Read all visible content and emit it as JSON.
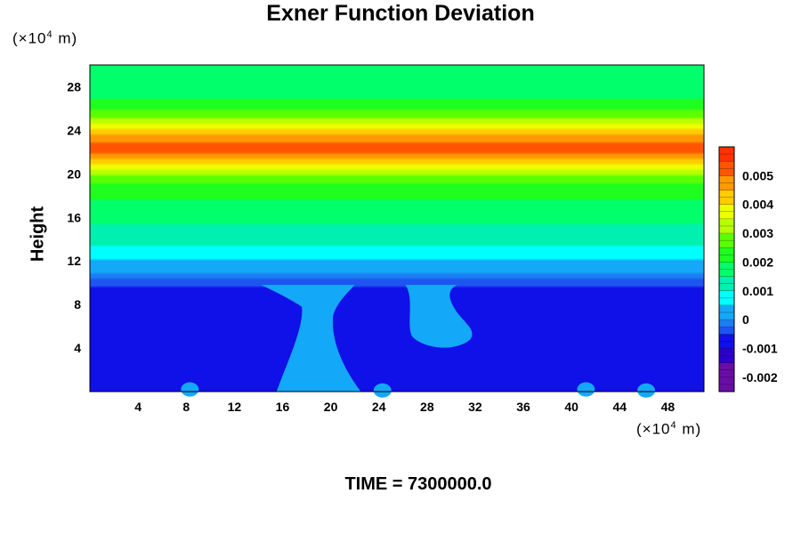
{
  "title": "Exner Function Deviation",
  "y_unit": {
    "prefix": "(×10",
    "exp": "4",
    "suffix": " m)"
  },
  "x_unit": {
    "prefix": "(×10",
    "exp": "4",
    "suffix": " m)"
  },
  "ylabel": "Height",
  "time_label": "TIME = 7300000.0",
  "colors": {
    "c_neg_0020": "#6a0da8",
    "c_neg_0015": "#2d00c8",
    "c_neg_0010": "#1010e8",
    "c_neg_0005": "#1e55f0",
    "c_zero_lo": "#1c7df5",
    "c_zero": "#14a8f8",
    "c_0005": "#00ffff",
    "c_0010": "#00f0b0",
    "c_0015": "#00ff6a",
    "c_0020": "#1fff1f",
    "c_0025": "#5cff00",
    "c_0030": "#b8ff00",
    "c_0035": "#eeff00",
    "c_0040": "#ffcc00",
    "c_0045": "#ff9900",
    "c_0050": "#ff5500",
    "c_0055": "#ff3300",
    "c_0060": "#ff8080"
  },
  "chart_data": {
    "type": "heatmap",
    "title": "Exner Function Deviation",
    "xlabel": "",
    "ylabel": "Height",
    "x_unit": "×10^4 m",
    "y_unit": "×10^4 m",
    "xlim": [
      0,
      51
    ],
    "ylim": [
      0,
      30
    ],
    "x_ticks": [
      4,
      8,
      12,
      16,
      20,
      24,
      28,
      32,
      36,
      40,
      44,
      48
    ],
    "y_ticks": [
      4,
      8,
      12,
      16,
      20,
      24,
      28
    ],
    "colorbar": {
      "range": [
        -0.0025,
        0.006
      ],
      "ticks": [
        0.005,
        0.004,
        0.003,
        0.002,
        0.001,
        0,
        -0.001,
        -0.002
      ],
      "tick_labels": [
        "0.005",
        "0.004",
        "0.003",
        "0.002",
        "0.001",
        "0",
        "-0.001",
        "-0.002"
      ]
    },
    "vertical_profile": [
      {
        "height": 0,
        "value": -0.0007
      },
      {
        "height": 9.5,
        "value": -0.0006
      },
      {
        "height": 11.0,
        "value": 0.0
      },
      {
        "height": 12.0,
        "value": 0.0004
      },
      {
        "height": 14.0,
        "value": 0.0012
      },
      {
        "height": 17.0,
        "value": 0.0018
      },
      {
        "height": 19.5,
        "value": 0.0026
      },
      {
        "height": 21.0,
        "value": 0.0042
      },
      {
        "height": 22.3,
        "value": 0.0055
      },
      {
        "height": 23.5,
        "value": 0.0045
      },
      {
        "height": 25.0,
        "value": 0.003
      },
      {
        "height": 27.0,
        "value": 0.0019
      },
      {
        "height": 30.0,
        "value": 0.0016
      }
    ],
    "time": 7300000.0
  }
}
